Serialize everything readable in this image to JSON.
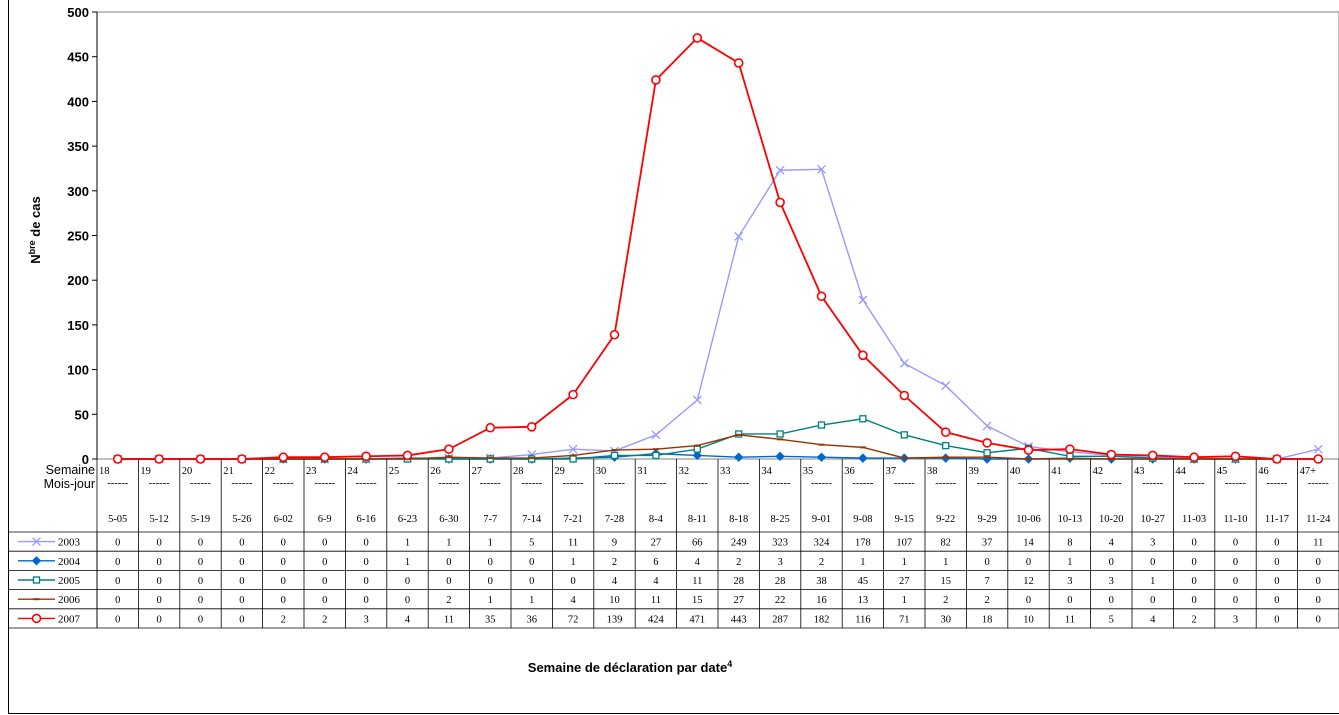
{
  "chart_data": {
    "type": "line",
    "ylabel_main": "N",
    "ylabel_sup": "bre",
    "ylabel_rest": " de cas",
    "xlabel_main": "Semaine de déclaration par date",
    "xlabel_sup": "4",
    "ylim": [
      0,
      500
    ],
    "yticks": [
      "0",
      "50",
      "100",
      "150",
      "200",
      "250",
      "300",
      "350",
      "400",
      "450",
      "500"
    ],
    "row_header_week": "Semaine",
    "row_header_date": "Mois-jour",
    "separator": "------",
    "weeks": [
      "18",
      "19",
      "20",
      "21",
      "22",
      "23",
      "24",
      "25",
      "26",
      "27",
      "28",
      "29",
      "30",
      "31",
      "32",
      "33",
      "34",
      "35",
      "36",
      "37",
      "38",
      "39",
      "40",
      "41",
      "42",
      "43",
      "44",
      "45",
      "46",
      "47+"
    ],
    "dates": [
      "5-05",
      "5-12",
      "5-19",
      "5-26",
      "6-02",
      "6-9",
      "6-16",
      "6-23",
      "6-30",
      "7-7",
      "7-14",
      "7-21",
      "7-28",
      "8-4",
      "8-11",
      "8-18",
      "8-25",
      "9-01",
      "9-08",
      "9-15",
      "9-22",
      "9-29",
      "10-06",
      "10-13",
      "10-20",
      "10-27",
      "11-03",
      "11-10",
      "11-17",
      "11-24"
    ],
    "series": [
      {
        "name": "2003",
        "color": "#9999ff",
        "marker": "x",
        "values": [
          0,
          0,
          0,
          0,
          0,
          0,
          0,
          1,
          1,
          1,
          5,
          11,
          9,
          27,
          66,
          249,
          323,
          324,
          178,
          107,
          82,
          37,
          14,
          8,
          4,
          3,
          0,
          0,
          0,
          11
        ]
      },
      {
        "name": "2004",
        "color": "#0066cc",
        "marker": "diamond",
        "values": [
          0,
          0,
          0,
          0,
          0,
          0,
          0,
          1,
          0,
          0,
          0,
          1,
          2,
          6,
          4,
          2,
          3,
          2,
          1,
          1,
          1,
          0,
          0,
          1,
          0,
          0,
          0,
          0,
          0,
          0
        ]
      },
      {
        "name": "2005",
        "color": "#008080",
        "marker": "square",
        "values": [
          0,
          0,
          0,
          0,
          0,
          0,
          0,
          0,
          0,
          0,
          0,
          0,
          4,
          4,
          11,
          28,
          28,
          38,
          45,
          27,
          15,
          7,
          12,
          3,
          3,
          1,
          0,
          0,
          0,
          0
        ]
      },
      {
        "name": "2006",
        "color": "#993300",
        "marker": "dash",
        "values": [
          0,
          0,
          0,
          0,
          0,
          0,
          0,
          0,
          2,
          1,
          1,
          4,
          10,
          11,
          15,
          27,
          22,
          16,
          13,
          1,
          2,
          2,
          0,
          0,
          0,
          0,
          0,
          0,
          0,
          0
        ]
      },
      {
        "name": "2007",
        "color": "#ff0000",
        "marker": "circle",
        "values": [
          0,
          0,
          0,
          0,
          2,
          2,
          3,
          4,
          11,
          35,
          36,
          72,
          139,
          424,
          471,
          443,
          287,
          182,
          116,
          71,
          30,
          18,
          10,
          11,
          5,
          4,
          2,
          3,
          0,
          0
        ]
      }
    ]
  }
}
